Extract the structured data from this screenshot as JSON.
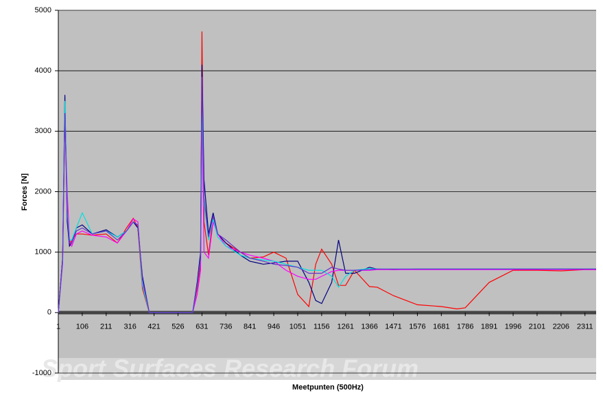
{
  "chart_data": {
    "type": "line",
    "y_label": "Forces [N]",
    "x_label": "Meetpunten (500Hz)",
    "watermark": "Sport Surfaces Research Forum",
    "x": [
      1,
      20,
      30,
      40,
      50,
      60,
      80,
      106,
      150,
      211,
      260,
      300,
      330,
      350,
      370,
      400,
      500,
      590,
      610,
      625,
      631,
      640,
      660,
      680,
      700,
      736,
      800,
      841,
      900,
      946,
      1000,
      1051,
      1100,
      1130,
      1156,
      1200,
      1230,
      1261,
      1300,
      1366,
      1400,
      1471,
      1576,
      1681,
      1750,
      1786,
      1891,
      1996,
      2101,
      2206,
      2311,
      2360
    ],
    "series": [
      {
        "color": "#ff0000",
        "values": [
          0,
          900,
          3300,
          1800,
          1100,
          1200,
          1300,
          1300,
          1280,
          1300,
          1150,
          1400,
          1560,
          1400,
          400,
          0,
          0,
          0,
          400,
          800,
          4650,
          1500,
          950,
          1600,
          1300,
          1150,
          1000,
          900,
          920,
          1000,
          900,
          300,
          100,
          800,
          1050,
          800,
          450,
          450,
          700,
          430,
          420,
          280,
          130,
          100,
          60,
          80,
          500,
          700,
          700,
          690,
          710,
          710
        ]
      },
      {
        "color": "#000080",
        "values": [
          0,
          900,
          3600,
          1500,
          1100,
          1150,
          1400,
          1450,
          1300,
          1370,
          1250,
          1350,
          1500,
          1400,
          600,
          0,
          0,
          0,
          500,
          1000,
          4100,
          2200,
          1300,
          1650,
          1300,
          1150,
          950,
          850,
          800,
          820,
          850,
          850,
          500,
          200,
          150,
          500,
          1200,
          650,
          650,
          750,
          720,
          710,
          720,
          720,
          720,
          720,
          720,
          720,
          720,
          720,
          720,
          720
        ]
      },
      {
        "color": "#ff00ff",
        "values": [
          0,
          800,
          3300,
          2000,
          1200,
          1100,
          1300,
          1350,
          1280,
          1250,
          1150,
          1350,
          1550,
          1500,
          500,
          0,
          0,
          0,
          300,
          700,
          3300,
          1000,
          900,
          1500,
          1300,
          1100,
          1000,
          950,
          900,
          850,
          700,
          600,
          550,
          550,
          600,
          680,
          700,
          700,
          700,
          700,
          710,
          710,
          710,
          710,
          710,
          710,
          710,
          710,
          710,
          710,
          710,
          710
        ]
      },
      {
        "color": "#00e0e0",
        "values": [
          0,
          850,
          3500,
          1700,
          1200,
          1200,
          1400,
          1650,
          1300,
          1350,
          1250,
          1350,
          1500,
          1450,
          450,
          0,
          0,
          0,
          450,
          900,
          3550,
          1800,
          1200,
          1550,
          1250,
          1100,
          950,
          900,
          870,
          850,
          800,
          750,
          700,
          700,
          700,
          600,
          420,
          600,
          700,
          730,
          720,
          720,
          720,
          720,
          720,
          720,
          720,
          720,
          720,
          720,
          720,
          720
        ]
      },
      {
        "color": "#6633cc",
        "values": [
          0,
          880,
          3300,
          1600,
          1150,
          1150,
          1350,
          1400,
          1300,
          1350,
          1200,
          1350,
          1500,
          1450,
          550,
          0,
          0,
          0,
          450,
          900,
          3900,
          1900,
          1250,
          1600,
          1300,
          1200,
          1000,
          900,
          850,
          800,
          780,
          750,
          650,
          650,
          650,
          750,
          720,
          700,
          700,
          710,
          720,
          720,
          720,
          720,
          720,
          720,
          720,
          720,
          720,
          720,
          720,
          720
        ]
      }
    ],
    "xlim": [
      1,
      2360
    ],
    "xticks": [
      1,
      106,
      211,
      316,
      421,
      526,
      631,
      736,
      841,
      946,
      1051,
      1156,
      1261,
      1366,
      1471,
      1576,
      1681,
      1786,
      1891,
      1996,
      2101,
      2206,
      2311
    ],
    "ylim": [
      -1000,
      5000
    ],
    "yticks": [
      -1000,
      0,
      1000,
      2000,
      3000,
      4000,
      5000
    ],
    "grid": true
  }
}
